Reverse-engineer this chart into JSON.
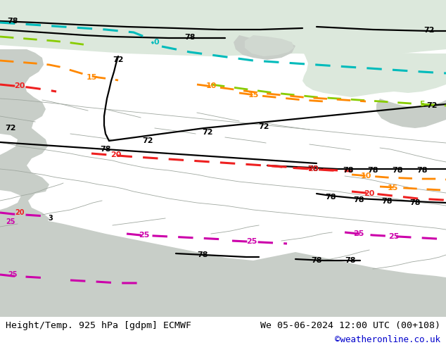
{
  "title_left": "Height/Temp. 925 hPa [gdpm] ECMWF",
  "title_right": "We 05-06-2024 12:00 UTC (00+108)",
  "credit": "©weatheronline.co.uk",
  "title_fontsize": 9.5,
  "credit_fontsize": 9,
  "figsize": [
    6.34,
    4.9
  ],
  "dpi": 100,
  "bg_color": "#b4f07a",
  "sea_color": "#dce8dc",
  "terrain_color": "#c8cec8",
  "white_color": "#f0f4f0",
  "black_contour_color": "#000000",
  "black_contour_linewidth": 1.6,
  "cyan_dashed_color": "#00bbbb",
  "cyan_dashed_linewidth": 2.2,
  "lime_dashed_color": "#88cc00",
  "lime_dashed_linewidth": 2.0,
  "orange_dashed_color": "#ff8800",
  "orange_dashed_linewidth": 2.0,
  "red_dashed_color": "#ee2020",
  "red_dashed_linewidth": 2.2,
  "magenta_dashed_color": "#cc00aa",
  "magenta_dashed_linewidth": 2.2,
  "border_color": "#a0a8a0",
  "border_linewidth": 0.6
}
